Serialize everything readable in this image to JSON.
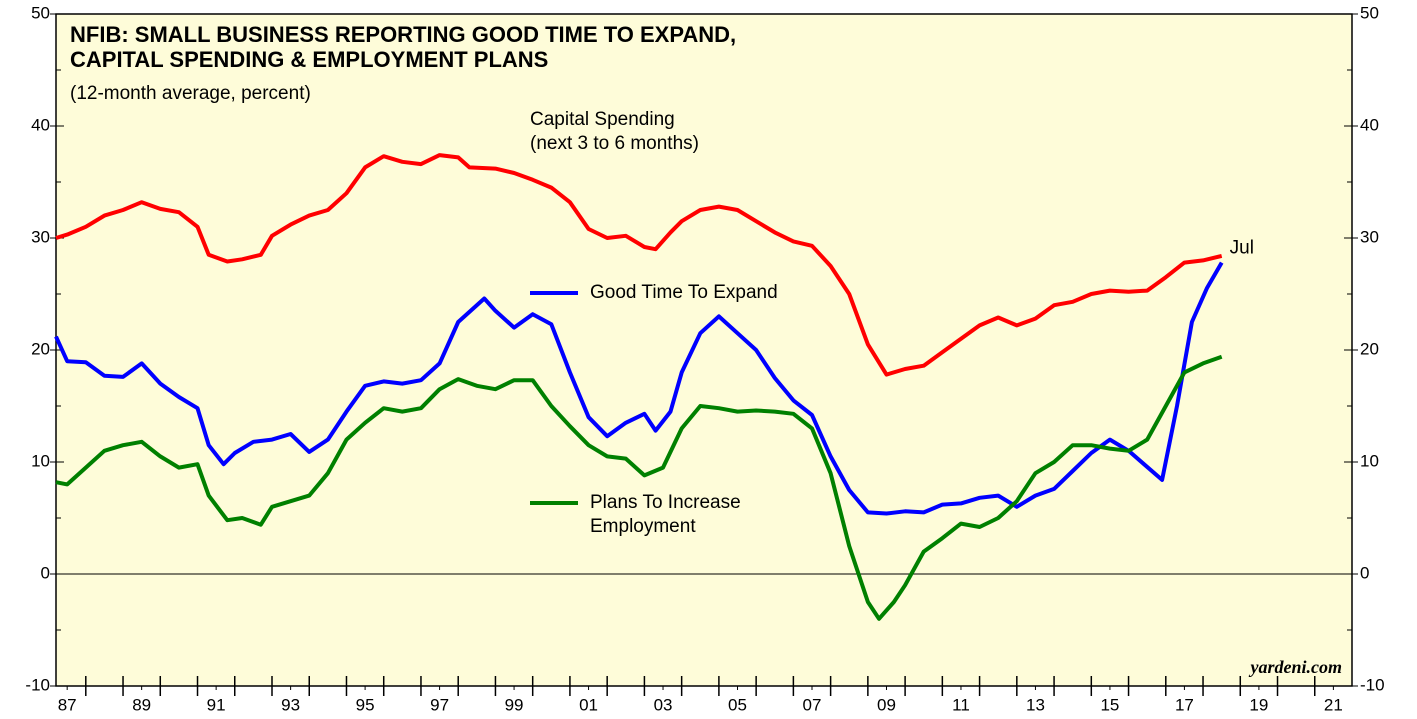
{
  "chart_data": {
    "type": "line",
    "title_lines": [
      "NFIB: SMALL BUSINESS REPORTING GOOD TIME TO EXPAND,",
      "CAPITAL SPENDING & EMPLOYMENT PLANS"
    ],
    "subtitle": "(12-month average, percent)",
    "source": "yardeni.com",
    "xlim": [
      1987.2,
      2022
    ],
    "xticks": [
      {
        "value": 1987.5,
        "label": "87"
      },
      {
        "value": 1989.5,
        "label": "89"
      },
      {
        "value": 1991.5,
        "label": "91"
      },
      {
        "value": 1993.5,
        "label": "93"
      },
      {
        "value": 1995.5,
        "label": "95"
      },
      {
        "value": 1997.5,
        "label": "97"
      },
      {
        "value": 1999.5,
        "label": "99"
      },
      {
        "value": 2001.5,
        "label": "01"
      },
      {
        "value": 2003.5,
        "label": "03"
      },
      {
        "value": 2005.5,
        "label": "05"
      },
      {
        "value": 2007.5,
        "label": "07"
      },
      {
        "value": 2009.5,
        "label": "09"
      },
      {
        "value": 2011.5,
        "label": "11"
      },
      {
        "value": 2013.5,
        "label": "13"
      },
      {
        "value": 2015.5,
        "label": "15"
      },
      {
        "value": 2017.5,
        "label": "17"
      },
      {
        "value": 2019.5,
        "label": "19"
      },
      {
        "value": 2021.5,
        "label": "21"
      }
    ],
    "xminorticks": [
      1988,
      1989,
      1990,
      1991,
      1992,
      1993,
      1994,
      1995,
      1996,
      1997,
      1998,
      1999,
      2000,
      2001,
      2002,
      2003,
      2004,
      2005,
      2006,
      2007,
      2008,
      2009,
      2010,
      2011,
      2012,
      2013,
      2014,
      2015,
      2016,
      2017,
      2018,
      2019,
      2020,
      2021
    ],
    "ylim": [
      -10,
      50
    ],
    "yticks": [
      -10,
      0,
      10,
      20,
      30,
      40,
      50
    ],
    "yminorticks": [
      -5,
      5,
      15,
      25,
      35,
      45
    ],
    "y2lim": [
      -10,
      50
    ],
    "y2ticks": [
      -10,
      0,
      10,
      20,
      30,
      40,
      50
    ],
    "zero_line": true,
    "background": "#fefcd9",
    "series": [
      {
        "label_lines": [
          "Capital Spending",
          "(next 3 to 6 months)"
        ],
        "color": "#ff0000",
        "x": [
          1987.2,
          1987.5,
          1988,
          1988.5,
          1989,
          1989.5,
          1990,
          1990.5,
          1991,
          1991.3,
          1991.8,
          1992.2,
          1992.7,
          1993,
          1993.5,
          1994,
          1994.5,
          1995,
          1995.5,
          1996,
          1996.5,
          1997,
          1997.5,
          1998,
          1998.3,
          1999,
          1999.5,
          2000,
          2000.5,
          2001,
          2001.5,
          2002,
          2002.5,
          2003,
          2003.3,
          2003.7,
          2004,
          2004.5,
          2005,
          2005.5,
          2006,
          2006.5,
          2007,
          2007.5,
          2008,
          2008.5,
          2009,
          2009.5,
          2010,
          2010.5,
          2011,
          2011.5,
          2012,
          2012.5,
          2013,
          2013.5,
          2014,
          2014.5,
          2015,
          2015.5,
          2016,
          2016.5,
          2017,
          2017.5,
          2018,
          2018.5
        ],
        "values": [
          30,
          30.3,
          31,
          32,
          32.5,
          33.2,
          32.6,
          32.3,
          31,
          28.5,
          27.9,
          28.1,
          28.5,
          30.2,
          31.2,
          32,
          32.5,
          34,
          36.3,
          37.3,
          36.8,
          36.6,
          37.4,
          37.2,
          36.3,
          36.2,
          35.8,
          35.2,
          34.5,
          33.2,
          30.8,
          30,
          30.2,
          29.2,
          29,
          30.5,
          31.5,
          32.5,
          32.8,
          32.5,
          31.5,
          30.5,
          29.7,
          29.3,
          27.5,
          25,
          20.5,
          17.8,
          18.3,
          18.6,
          19.8,
          21,
          22.2,
          22.9,
          22.2,
          22.8,
          24,
          24.3,
          25,
          25.3,
          25.2,
          25.3,
          26.5,
          27.8,
          28,
          28.4
        ]
      },
      {
        "label_lines": [
          "Good Time To Expand"
        ],
        "color": "#0000ff",
        "end_label": "Jul",
        "x": [
          1987.2,
          1987.5,
          1988,
          1988.5,
          1989,
          1989.5,
          1990,
          1990.5,
          1991,
          1991.3,
          1991.7,
          1992,
          1992.5,
          1993,
          1993.5,
          1994,
          1994.5,
          1995,
          1995.5,
          1996,
          1996.5,
          1997,
          1997.5,
          1998,
          1998.7,
          1999,
          1999.5,
          2000,
          2000.5,
          2001,
          2001.5,
          2002,
          2002.5,
          2003,
          2003.3,
          2003.7,
          2004,
          2004.5,
          2005,
          2005.5,
          2006,
          2006.5,
          2007,
          2007.5,
          2008,
          2008.5,
          2009,
          2009.5,
          2010,
          2010.5,
          2011,
          2011.5,
          2012,
          2012.5,
          2013,
          2013.5,
          2014,
          2014.5,
          2015,
          2015.5,
          2016,
          2016.9,
          2017.3,
          2017.7,
          2018.1,
          2018.5
        ],
        "values": [
          21.2,
          19,
          18.9,
          17.7,
          17.6,
          18.8,
          17,
          15.8,
          14.8,
          11.5,
          9.8,
          10.8,
          11.8,
          12,
          12.5,
          10.9,
          12,
          14.5,
          16.8,
          17.2,
          17,
          17.3,
          18.8,
          22.5,
          24.6,
          23.5,
          22,
          23.2,
          22.3,
          18,
          14,
          12.3,
          13.5,
          14.3,
          12.8,
          14.5,
          18,
          21.5,
          23,
          21.5,
          20,
          17.5,
          15.5,
          14.2,
          10.5,
          7.5,
          5.5,
          5.4,
          5.6,
          5.5,
          6.2,
          6.3,
          6.8,
          7,
          6,
          7,
          7.6,
          9.2,
          10.8,
          12,
          11,
          8.4,
          15,
          22.5,
          25.5,
          27.8
        ]
      },
      {
        "label_lines": [
          "Plans To Increase",
          "Employment"
        ],
        "color": "#008000",
        "x": [
          1987.2,
          1987.5,
          1988,
          1988.5,
          1989,
          1989.5,
          1990,
          1990.5,
          1991,
          1991.3,
          1991.8,
          1992.2,
          1992.7,
          1993,
          1993.5,
          1994,
          1994.5,
          1995,
          1995.5,
          1996,
          1996.5,
          1997,
          1997.5,
          1998,
          1998.5,
          1999,
          1999.5,
          2000,
          2000.5,
          2001,
          2001.5,
          2002,
          2002.5,
          2003,
          2003.5,
          2004,
          2004.5,
          2005,
          2005.5,
          2006,
          2006.5,
          2007,
          2007.5,
          2008,
          2008.5,
          2009,
          2009.3,
          2009.7,
          2010,
          2010.5,
          2011,
          2011.5,
          2012,
          2012.5,
          2013,
          2013.5,
          2014,
          2014.5,
          2015,
          2015.5,
          2016,
          2016.5,
          2017,
          2017.5,
          2018,
          2018.5
        ],
        "values": [
          8.2,
          8,
          9.5,
          11,
          11.5,
          11.8,
          10.5,
          9.5,
          9.8,
          7,
          4.8,
          5,
          4.4,
          6,
          6.5,
          7,
          9,
          12,
          13.5,
          14.8,
          14.5,
          14.8,
          16.5,
          17.4,
          16.8,
          16.5,
          17.3,
          17.3,
          15,
          13.2,
          11.5,
          10.5,
          10.3,
          8.8,
          9.5,
          13,
          15,
          14.8,
          14.5,
          14.6,
          14.5,
          14.3,
          13,
          9,
          2.5,
          -2.5,
          -4,
          -2.5,
          -1,
          2,
          3.2,
          4.5,
          4.2,
          5,
          6.5,
          9,
          10,
          11.5,
          11.5,
          11.2,
          11,
          12,
          15,
          18,
          18.8,
          19.4
        ]
      }
    ]
  }
}
